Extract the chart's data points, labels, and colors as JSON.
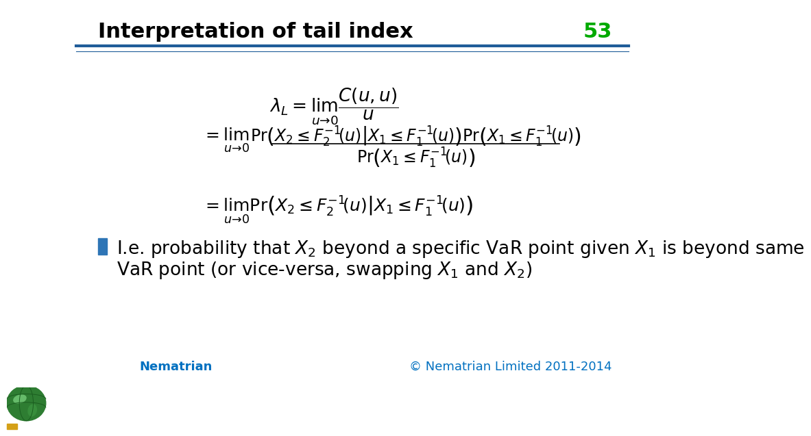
{
  "title": "Interpretation of tail index",
  "slide_number": "53",
  "title_color": "#000000",
  "slide_number_color": "#00aa00",
  "title_fontsize": 22,
  "header_line_color": "#1F5C99",
  "background_color": "#ffffff",
  "bullet_color": "#2E75B6",
  "bullet_text_line1": "I.e. probability that $X_2$ beyond a specific VaR point given $X_1$ is beyond same",
  "bullet_text_line2": "VaR point (or vice-versa, swapping $X_1$ and $X_2$)",
  "bullet_fontsize": 19,
  "nematrian_text": "Nematrian",
  "nematrian_color": "#0070C0",
  "copyright_text": "© Nematrian Limited 2011-2014",
  "copyright_color": "#0070C0",
  "footer_fontsize": 13,
  "eq_fontsize": 17
}
